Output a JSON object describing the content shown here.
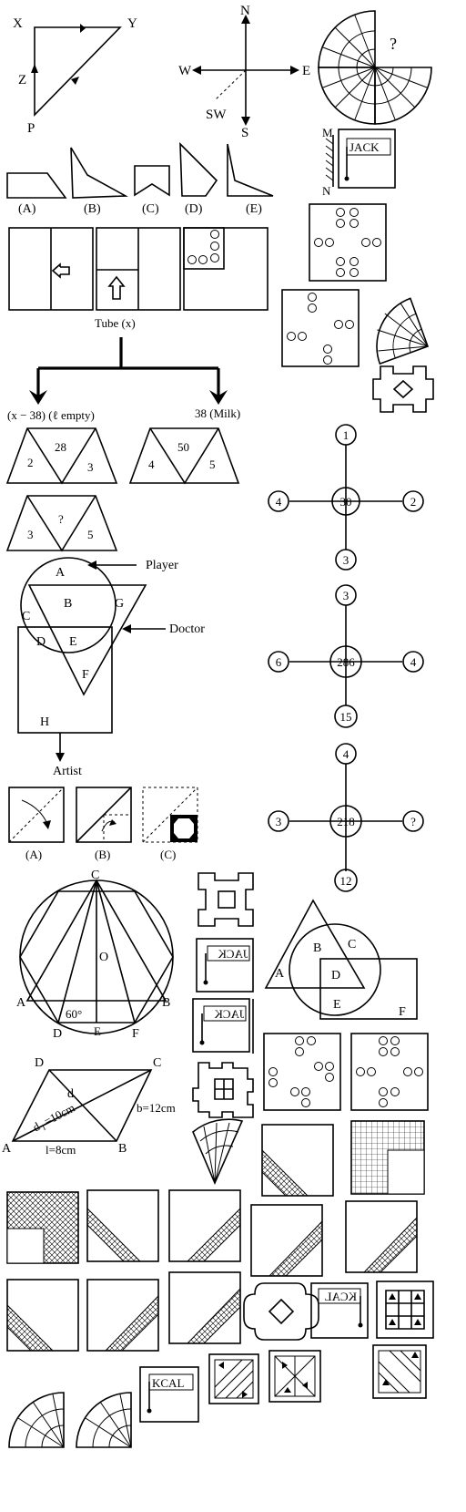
{
  "compass_triangle": {
    "vertices": [
      "X",
      "Y",
      "Z",
      "P"
    ]
  },
  "compass": {
    "north": "N",
    "south": "S",
    "east": "E",
    "west": "W",
    "southwest": "SW"
  },
  "unknown_mark": "?",
  "mirror": {
    "top": "M",
    "bottom": "N",
    "word": "JACK"
  },
  "shape_options": [
    "(A)",
    "(B)",
    "(C)",
    "(D)",
    "(E)"
  ],
  "tube": {
    "title": "Tube (x)",
    "left": "(x − 38) (ℓ empty)",
    "right": "38 (Milk)"
  },
  "trapezoids": [
    {
      "top": "28",
      "left": "2",
      "right": "3"
    },
    {
      "top": "50",
      "left": "4",
      "right": "5"
    },
    {
      "top": "?",
      "left": "3",
      "right": "5"
    }
  ],
  "venn_people": {
    "regions": [
      "A",
      "B",
      "C",
      "D",
      "E",
      "F",
      "G",
      "H"
    ],
    "player": "Player",
    "doctor": "Doctor",
    "artist": "Artist"
  },
  "fold_options": [
    "(A)",
    "(B)",
    "(C)"
  ],
  "wheels": [
    {
      "top": "1",
      "left": "4",
      "center": "30",
      "right": "2",
      "bottom": "3"
    },
    {
      "top": "3",
      "left": "6",
      "center": "286",
      "right": "4",
      "bottom": "15"
    },
    {
      "top": "4",
      "left": "3",
      "center": "218",
      "right": "?",
      "bottom": "12"
    }
  ],
  "hexagon": {
    "top": "C",
    "center": "O",
    "left": "A",
    "right": "B",
    "bottom_left": "D",
    "bottom_mid": "E",
    "bottom_right": "F",
    "angle": "60°"
  },
  "mirror_words": [
    "JACK",
    "JACK",
    "KCAL",
    "KCAL"
  ],
  "venn_shapes": {
    "regions": [
      "A",
      "B",
      "C",
      "D",
      "E",
      "F"
    ]
  },
  "parallelogram": {
    "corners": [
      "D",
      "C",
      "A",
      "B"
    ],
    "diag": "d",
    "d1": "d",
    "d1_sub": "1",
    "d1_value": "=10cm",
    "side_b": "b=12cm",
    "side_l": "l=8cm"
  }
}
